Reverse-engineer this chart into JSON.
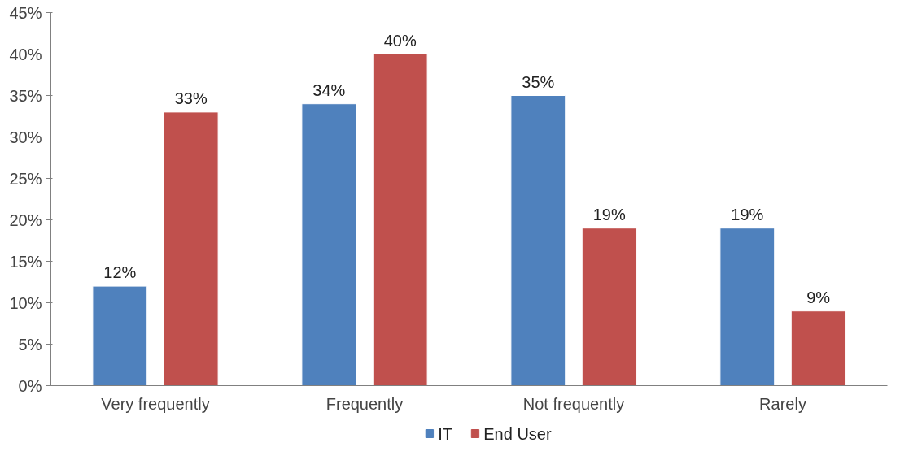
{
  "chart_data": {
    "type": "bar",
    "categories": [
      "Very frequently",
      "Frequently",
      "Not frequently",
      "Rarely"
    ],
    "series": [
      {
        "name": "IT",
        "color": "#4f81bd",
        "values": [
          12,
          34,
          35,
          19
        ],
        "value_labels": [
          "12%",
          "34%",
          "35%",
          "19%"
        ]
      },
      {
        "name": "End User",
        "color": "#c0504d",
        "values": [
          33,
          40,
          19,
          9
        ],
        "value_labels": [
          "33%",
          "40%",
          "19%",
          "9%"
        ]
      }
    ],
    "ylim": [
      0,
      45
    ],
    "yticks": [
      {
        "value": 0,
        "label": "0%"
      },
      {
        "value": 5,
        "label": "5%"
      },
      {
        "value": 10,
        "label": "10%"
      },
      {
        "value": 15,
        "label": "15%"
      },
      {
        "value": 20,
        "label": "20%"
      },
      {
        "value": 25,
        "label": "25%"
      },
      {
        "value": 30,
        "label": "30%"
      },
      {
        "value": 35,
        "label": "35%"
      },
      {
        "value": 40,
        "label": "40%"
      },
      {
        "value": 45,
        "label": "45%"
      }
    ],
    "grid": false,
    "legend": "bottom"
  }
}
